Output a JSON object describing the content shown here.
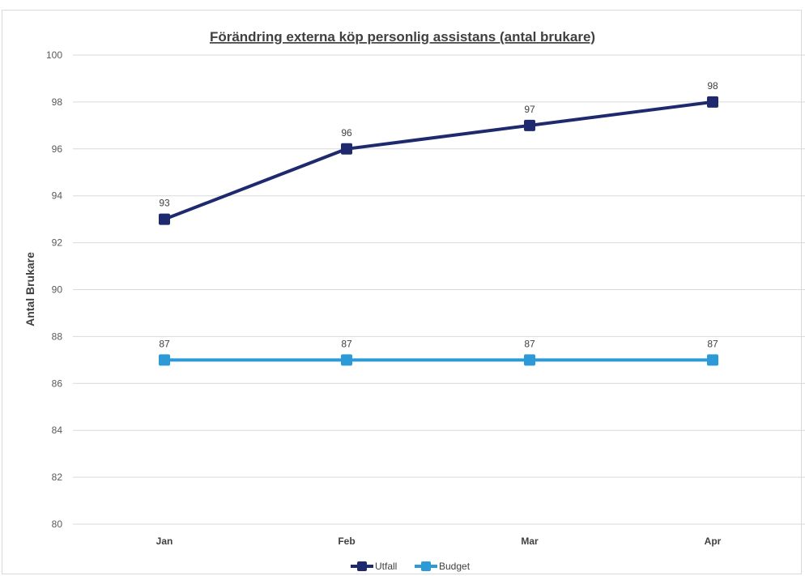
{
  "chart_data": {
    "type": "line",
    "title": "Förändring externa köp personlig assistans (antal brukare)",
    "xlabel": "",
    "ylabel": "Antal Brukare",
    "categories": [
      "Jan",
      "Feb",
      "Mar",
      "Apr"
    ],
    "ylim": [
      80,
      100
    ],
    "yticks": [
      80,
      82,
      84,
      86,
      88,
      90,
      92,
      94,
      96,
      98,
      100
    ],
    "grid": true,
    "legend": "bottom-center",
    "series": [
      {
        "name": "Utfall",
        "values": [
          93,
          96,
          97,
          98
        ],
        "color": "#1f2a6e"
      },
      {
        "name": "Budget",
        "values": [
          87,
          87,
          87,
          87
        ],
        "color": "#2b9ad6"
      }
    ]
  }
}
